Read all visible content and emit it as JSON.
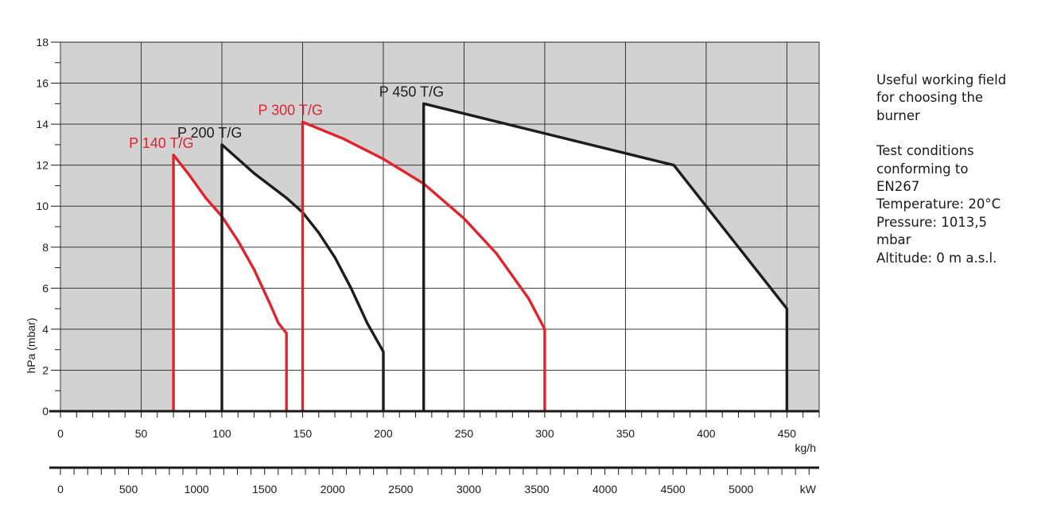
{
  "chart_data": {
    "type": "line",
    "ylabel": "hPa (mbar)",
    "xlabel": "kg/h",
    "x2label": "kW",
    "xlim": [
      0,
      470
    ],
    "ylim": [
      0,
      18
    ],
    "x_ticks": [
      0,
      50,
      100,
      150,
      200,
      250,
      300,
      350,
      400,
      450
    ],
    "y_ticks": [
      0,
      2,
      4,
      6,
      8,
      10,
      12,
      14,
      16,
      18
    ],
    "x2_ticks": [
      0,
      500,
      1000,
      1500,
      2000,
      2500,
      3000,
      3500,
      4000,
      4500,
      5000
    ],
    "grid": true,
    "colors": {
      "red": "#e3232b",
      "black": "#1d1d1b",
      "plot_background": "#d2d2d2",
      "field": "#ffffff"
    },
    "series": [
      {
        "name": "P 140 T/G",
        "color": "#e3232b",
        "points": [
          [
            70,
            0
          ],
          [
            70,
            12.5
          ],
          [
            80,
            11.5
          ],
          [
            90,
            10.4
          ],
          [
            100,
            9.5
          ],
          [
            110,
            8.3
          ],
          [
            120,
            6.9
          ],
          [
            130,
            5.2
          ],
          [
            135,
            4.3
          ],
          [
            140,
            3.8
          ],
          [
            140,
            0
          ]
        ]
      },
      {
        "name": "P 200 T/G",
        "color": "#1d1d1b",
        "points": [
          [
            100,
            0
          ],
          [
            100,
            13
          ],
          [
            120,
            11.6
          ],
          [
            140,
            10.4
          ],
          [
            150,
            9.7
          ],
          [
            160,
            8.7
          ],
          [
            170,
            7.5
          ],
          [
            180,
            6
          ],
          [
            190,
            4.3
          ],
          [
            200,
            2.9
          ],
          [
            200,
            0
          ]
        ]
      },
      {
        "name": "P 300 T/G",
        "color": "#e3232b",
        "points": [
          [
            150,
            0
          ],
          [
            150,
            14.1
          ],
          [
            175,
            13.3
          ],
          [
            200,
            12.3
          ],
          [
            225,
            11.1
          ],
          [
            250,
            9.4
          ],
          [
            270,
            7.7
          ],
          [
            290,
            5.5
          ],
          [
            300,
            4
          ],
          [
            300,
            0
          ]
        ]
      },
      {
        "name": "P 450 T/G",
        "color": "#1d1d1b",
        "points": [
          [
            225,
            0
          ],
          [
            225,
            15
          ],
          [
            380,
            12
          ],
          [
            450,
            5
          ],
          [
            450,
            0
          ]
        ]
      }
    ]
  },
  "notes": {
    "lines_1": [
      "Useful working field",
      "for choosing the",
      "burner"
    ],
    "lines_2": [
      "Test conditions",
      "conforming to",
      "EN267",
      "Temperature: 20°C",
      "Pressure: 1013,5",
      "mbar",
      "Altitude: 0 m a.s.l."
    ]
  }
}
